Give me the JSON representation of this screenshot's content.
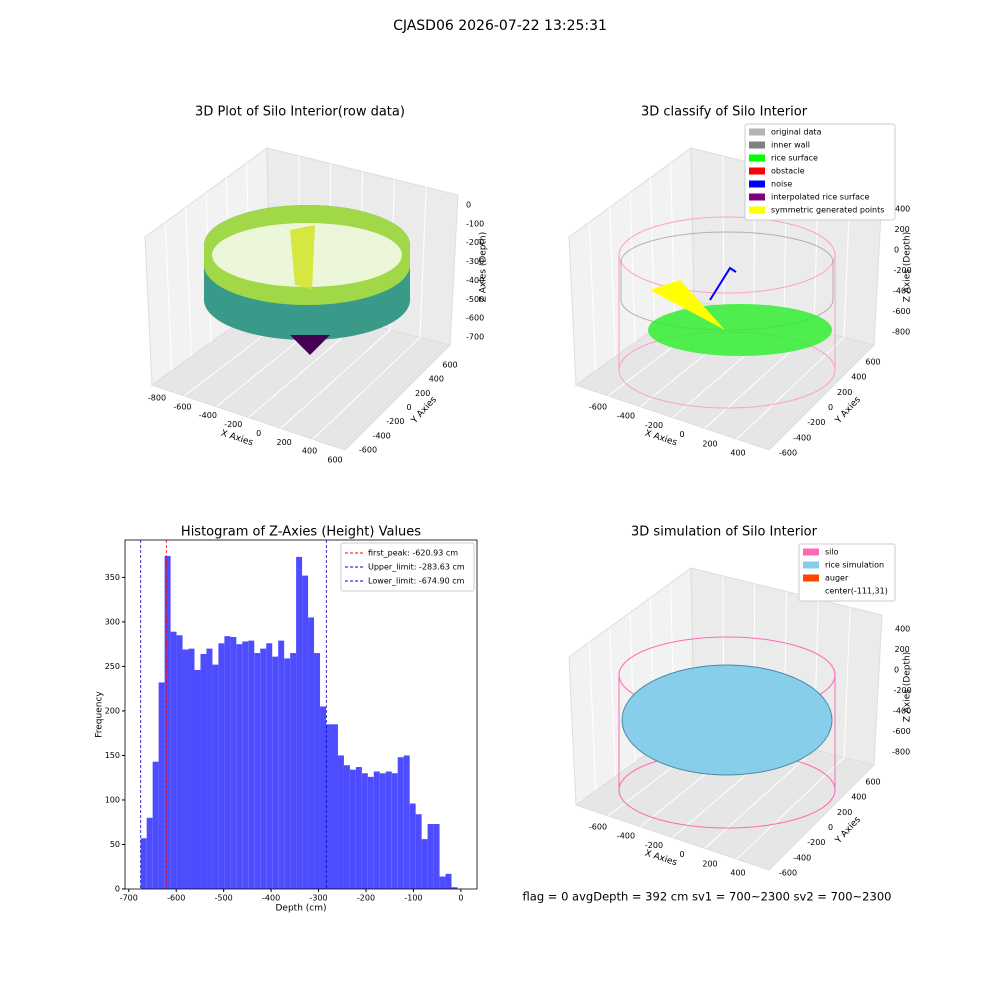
{
  "suptitle": "CJASD06 2026-07-22 13:25:31",
  "footer": "flag = 0     avgDepth = 392 cm  sv1 = 700~2300  sv2 = 700~2300",
  "plots3d": [
    {
      "title": "3D Plot of Silo Interior(row data)",
      "xlabel": "X Axies",
      "ylabel": "Y Axies",
      "zlabel": "Z Axies (Depth)",
      "xticks": [
        -800,
        -600,
        -400,
        -200,
        0,
        200,
        400,
        600
      ],
      "yticks": [
        -600,
        -400,
        -200,
        0,
        200,
        400,
        600
      ],
      "zticks": [
        0,
        -100,
        -200,
        -300,
        -400,
        -500,
        -600,
        -700
      ]
    },
    {
      "title": "3D classify of Silo Interior",
      "xlabel": "X Axies",
      "ylabel": "Y Axies",
      "zlabel": "Z Axies (Depth)",
      "xticks": [
        -600,
        -400,
        -200,
        0,
        200,
        400
      ],
      "yticks": [
        -600,
        -400,
        -200,
        0,
        200,
        400,
        600
      ],
      "zticks": [
        400,
        200,
        0,
        -200,
        -400,
        -600,
        -800
      ],
      "legend": [
        {
          "label": "original data",
          "color": "#b3b3b3"
        },
        {
          "label": "inner wall",
          "color": "#808080"
        },
        {
          "label": "rice surface",
          "color": "#00ff00"
        },
        {
          "label": "obstacle",
          "color": "#ff0000"
        },
        {
          "label": "noise",
          "color": "#0000ff"
        },
        {
          "label": "interpolated rice surface",
          "color": "#800080"
        },
        {
          "label": "symmetric generated points",
          "color": "#ffff00"
        }
      ]
    },
    {
      "title": "3D simulation of Silo Interior",
      "xlabel": "X Axies",
      "ylabel": "Y Axies",
      "zlabel": "Z Axies (Depth)",
      "xticks": [
        -600,
        -400,
        -200,
        0,
        200,
        400
      ],
      "yticks": [
        -600,
        -400,
        -200,
        0,
        200,
        400,
        600
      ],
      "zticks": [
        400,
        200,
        0,
        -200,
        -400,
        -600,
        -800
      ],
      "legend": [
        {
          "label": "silo",
          "color": "#ff69b4"
        },
        {
          "label": "rice simulation",
          "color": "#87ceeb"
        },
        {
          "label": "auger",
          "color": "#ff4500"
        },
        {
          "label": "center(-111,31)"
        }
      ]
    }
  ],
  "chart_data": {
    "type": "histogram",
    "title": "Histogram of Z-Axies (Height) Values",
    "xlabel": "Depth (cm)",
    "ylabel": "Frequency",
    "color": "#4d4dff",
    "bins": [
      -674.9,
      -662.3,
      -649.7,
      -637.1,
      -624.5,
      -611.9,
      -599.3,
      -586.7,
      -574.1,
      -561.5,
      -548.9,
      -536.3,
      -523.7,
      -511.1,
      -498.5,
      -485.9,
      -473.3,
      -460.7,
      -448.1,
      -435.5,
      -422.9,
      -410.3,
      -397.7,
      -385.1,
      -372.5,
      -359.9,
      -347.3,
      -334.7,
      -322.1,
      -309.5,
      -296.9,
      -284.3,
      -271.7,
      -259.1,
      -246.5,
      -233.9,
      -221.3,
      -208.7,
      -196.1,
      -183.5,
      -170.9,
      -158.3,
      -145.7,
      -133.1,
      -120.5,
      -107.9,
      -95.3,
      -82.7,
      -70.1,
      -57.5,
      -44.9,
      -32.3,
      -19.7,
      -7.1
    ],
    "values": [
      57,
      80,
      143,
      232,
      374,
      289,
      285,
      269,
      270,
      246,
      264,
      270,
      252,
      276,
      284,
      283,
      275,
      278,
      279,
      265,
      270,
      276,
      261,
      279,
      259,
      265,
      373,
      352,
      305,
      265,
      205,
      185,
      185,
      150,
      139,
      134,
      137,
      130,
      126,
      132,
      130,
      132,
      130,
      148,
      150,
      96,
      84,
      56,
      73,
      73,
      14,
      17,
      2
    ],
    "xlim": [
      -708,
      34
    ],
    "ylim": [
      0,
      392
    ],
    "xticks": [
      -700,
      -600,
      -500,
      -400,
      -300,
      -200,
      -100,
      0
    ],
    "yticks": [
      0,
      50,
      100,
      150,
      200,
      250,
      300,
      350
    ],
    "lines": [
      {
        "label": "first_peak: -620.93 cm",
        "x": -620.93,
        "color": "#ff0000"
      },
      {
        "label": "Upper_limit: -283.63 cm",
        "x": -283.63,
        "color": "#0000cc"
      },
      {
        "label": "Lower_limit: -674.90 cm",
        "x": -674.9,
        "color": "#0000cc"
      }
    ]
  }
}
